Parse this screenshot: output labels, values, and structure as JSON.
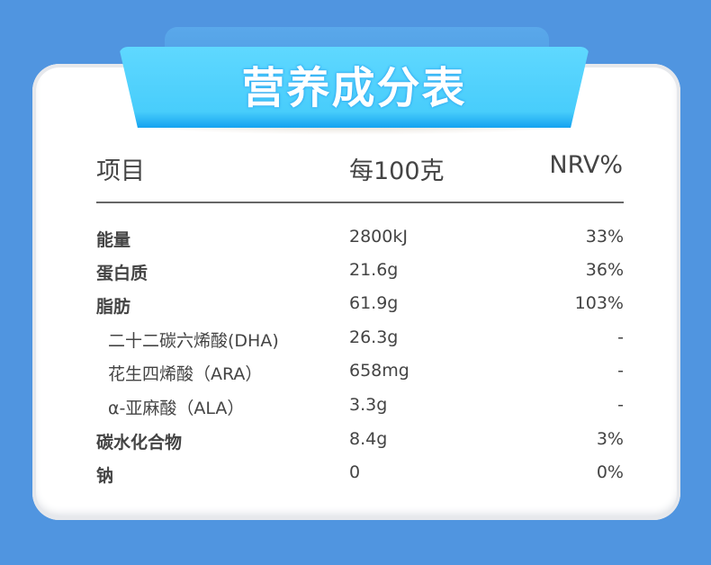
{
  "title": "营养成分表",
  "header": {
    "item": "项目",
    "per100g": "每100克",
    "nrv": "NRV%"
  },
  "rows": [
    {
      "name": "能量",
      "value": "2800kJ",
      "nrv": "33%",
      "bold": true
    },
    {
      "name": "蛋白质",
      "value": "21.6g",
      "nrv": "36%",
      "bold": true
    },
    {
      "name": "脂肪",
      "value": "61.9g",
      "nrv": "103%",
      "bold": true
    },
    {
      "name": "二十二碳六烯酸(DHA)",
      "value": "26.3g",
      "nrv": "-",
      "bold": false
    },
    {
      "name": "花生四烯酸（ARA）",
      "value": "658mg",
      "nrv": "-",
      "bold": false
    },
    {
      "name": "α-亚麻酸（ALA）",
      "value": "3.3g",
      "nrv": "-",
      "bold": false
    },
    {
      "name": "碳水化合物",
      "value": "8.4g",
      "nrv": "3%",
      "bold": true
    },
    {
      "name": "钠",
      "value": "0",
      "nrv": "0%",
      "bold": true
    }
  ],
  "colors": {
    "background": "#5095e0",
    "banner": "#4fd2fc",
    "text": "#444444"
  }
}
